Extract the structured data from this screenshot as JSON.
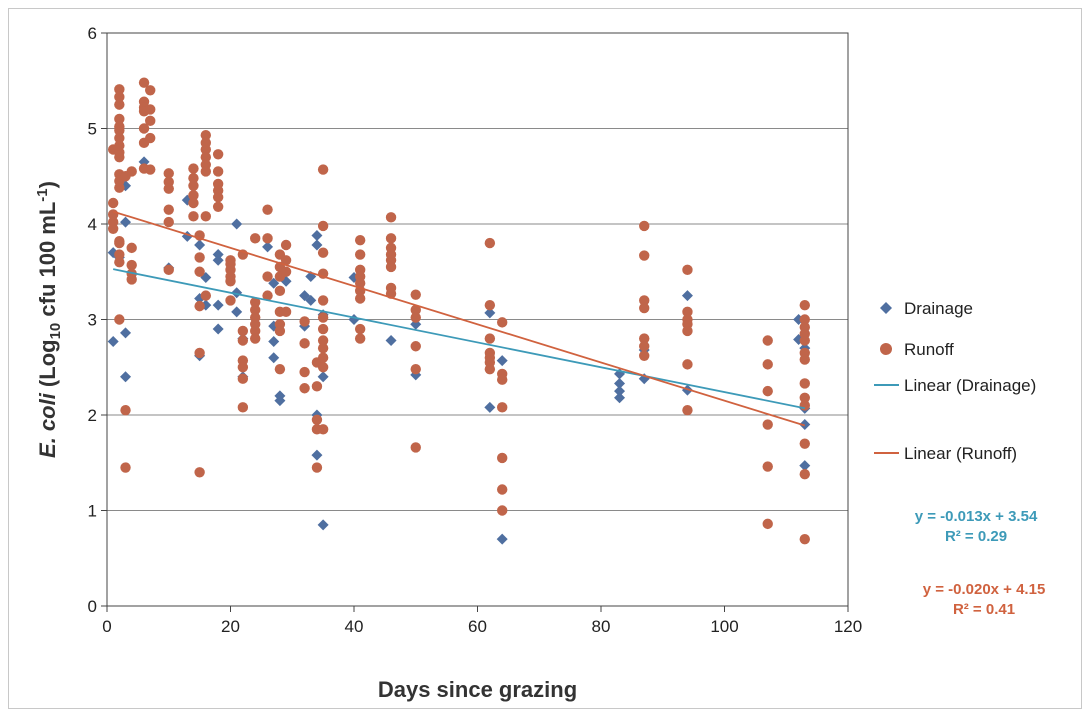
{
  "chart_data": {
    "type": "scatter",
    "xlabel": "Days since grazing",
    "ylabel": {
      "italic": "E. coli",
      "pre": " (Log",
      "sub": "10",
      "mid": " cfu 100 mL",
      "sup": "-1",
      "post": ")"
    },
    "xlim": [
      0,
      120
    ],
    "ylim": [
      0,
      6
    ],
    "x_ticks": [
      "0",
      "20",
      "40",
      "60",
      "80",
      "100",
      "120"
    ],
    "y_ticks": [
      "0",
      "1",
      "2",
      "3",
      "4",
      "5",
      "6"
    ],
    "grid": "horizontal",
    "legend_position": "right",
    "colors": {
      "drainage": "#4f6fa0",
      "runoff": "#c0654a",
      "drainage_trend": "#3d9ab8",
      "runoff_trend": "#d0623f"
    },
    "series": [
      {
        "name": "Drainage",
        "marker": "diamond",
        "points": [
          [
            1,
            2.77
          ],
          [
            1,
            3.7
          ],
          [
            2,
            3.65
          ],
          [
            3,
            2.86
          ],
          [
            3,
            2.4
          ],
          [
            3,
            4.02
          ],
          [
            3,
            4.4
          ],
          [
            6,
            4.65
          ],
          [
            10,
            3.54
          ],
          [
            13,
            3.87
          ],
          [
            13,
            4.25
          ],
          [
            15,
            2.62
          ],
          [
            15,
            3.22
          ],
          [
            15,
            3.78
          ],
          [
            16,
            3.15
          ],
          [
            16,
            3.44
          ],
          [
            18,
            2.9
          ],
          [
            18,
            3.15
          ],
          [
            18,
            3.62
          ],
          [
            18,
            3.68
          ],
          [
            21,
            3.28
          ],
          [
            21,
            3.08
          ],
          [
            21,
            4.0
          ],
          [
            22,
            2.4
          ],
          [
            22,
            2.8
          ],
          [
            26,
            3.76
          ],
          [
            27,
            2.6
          ],
          [
            27,
            2.77
          ],
          [
            27,
            2.93
          ],
          [
            27,
            3.38
          ],
          [
            28,
            2.15
          ],
          [
            28,
            2.2
          ],
          [
            29,
            3.4
          ],
          [
            32,
            2.93
          ],
          [
            32,
            3.25
          ],
          [
            33,
            3.2
          ],
          [
            33,
            3.45
          ],
          [
            34,
            3.78
          ],
          [
            34,
            3.88
          ],
          [
            34,
            1.58
          ],
          [
            34,
            2.0
          ],
          [
            35,
            2.4
          ],
          [
            35,
            3.05
          ],
          [
            35,
            0.85
          ],
          [
            40,
            3.44
          ],
          [
            40,
            3.0
          ],
          [
            46,
            2.78
          ],
          [
            50,
            2.42
          ],
          [
            50,
            2.95
          ],
          [
            62,
            3.07
          ],
          [
            62,
            2.08
          ],
          [
            64,
            2.57
          ],
          [
            64,
            0.7
          ],
          [
            83,
            2.18
          ],
          [
            83,
            2.25
          ],
          [
            83,
            2.33
          ],
          [
            83,
            2.43
          ],
          [
            87,
            2.68
          ],
          [
            87,
            2.38
          ],
          [
            94,
            3.25
          ],
          [
            94,
            2.26
          ],
          [
            112,
            3.0
          ],
          [
            112,
            2.79
          ],
          [
            113,
            2.07
          ],
          [
            113,
            1.9
          ],
          [
            113,
            1.47
          ],
          [
            113,
            2.7
          ]
        ]
      },
      {
        "name": "Runoff",
        "marker": "circle",
        "points": [
          [
            1,
            3.95
          ],
          [
            1,
            4.02
          ],
          [
            1,
            4.1
          ],
          [
            1,
            4.22
          ],
          [
            1,
            4.78
          ],
          [
            2,
            3.6
          ],
          [
            2,
            3.68
          ],
          [
            2,
            3.8
          ],
          [
            2,
            3.82
          ],
          [
            2,
            4.38
          ],
          [
            2,
            4.45
          ],
          [
            2,
            4.52
          ],
          [
            2,
            4.7
          ],
          [
            2,
            4.75
          ],
          [
            2,
            4.82
          ],
          [
            2,
            4.9
          ],
          [
            2,
            4.98
          ],
          [
            2,
            5.02
          ],
          [
            2,
            5.1
          ],
          [
            2,
            5.25
          ],
          [
            2,
            5.33
          ],
          [
            2,
            5.41
          ],
          [
            2,
            3.0
          ],
          [
            3,
            2.05
          ],
          [
            3,
            1.45
          ],
          [
            3,
            4.5
          ],
          [
            4,
            4.55
          ],
          [
            4,
            3.75
          ],
          [
            4,
            3.57
          ],
          [
            4,
            3.48
          ],
          [
            4,
            3.42
          ],
          [
            6,
            5.48
          ],
          [
            6,
            5.28
          ],
          [
            6,
            5.22
          ],
          [
            6,
            5.18
          ],
          [
            6,
            5.0
          ],
          [
            6,
            4.85
          ],
          [
            6,
            4.58
          ],
          [
            7,
            5.4
          ],
          [
            7,
            5.2
          ],
          [
            7,
            5.08
          ],
          [
            7,
            4.9
          ],
          [
            7,
            4.57
          ],
          [
            10,
            4.53
          ],
          [
            10,
            4.44
          ],
          [
            10,
            4.37
          ],
          [
            10,
            4.15
          ],
          [
            10,
            4.02
          ],
          [
            10,
            3.52
          ],
          [
            14,
            4.58
          ],
          [
            14,
            4.48
          ],
          [
            14,
            4.4
          ],
          [
            14,
            4.3
          ],
          [
            14,
            4.22
          ],
          [
            14,
            4.08
          ],
          [
            15,
            3.88
          ],
          [
            15,
            3.65
          ],
          [
            15,
            3.5
          ],
          [
            15,
            3.14
          ],
          [
            15,
            2.65
          ],
          [
            15,
            1.4
          ],
          [
            16,
            4.93
          ],
          [
            16,
            4.85
          ],
          [
            16,
            4.78
          ],
          [
            16,
            4.7
          ],
          [
            16,
            4.62
          ],
          [
            16,
            4.55
          ],
          [
            16,
            4.08
          ],
          [
            16,
            3.25
          ],
          [
            18,
            4.73
          ],
          [
            18,
            4.55
          ],
          [
            18,
            4.42
          ],
          [
            18,
            4.35
          ],
          [
            18,
            4.28
          ],
          [
            18,
            4.18
          ],
          [
            20,
            3.62
          ],
          [
            20,
            3.58
          ],
          [
            20,
            3.52
          ],
          [
            20,
            3.45
          ],
          [
            20,
            3.4
          ],
          [
            20,
            3.2
          ],
          [
            22,
            3.68
          ],
          [
            22,
            2.88
          ],
          [
            22,
            2.78
          ],
          [
            22,
            2.57
          ],
          [
            22,
            2.5
          ],
          [
            22,
            2.38
          ],
          [
            22,
            2.08
          ],
          [
            24,
            3.85
          ],
          [
            24,
            3.18
          ],
          [
            24,
            3.1
          ],
          [
            24,
            3.02
          ],
          [
            24,
            2.95
          ],
          [
            24,
            2.88
          ],
          [
            24,
            2.8
          ],
          [
            26,
            4.15
          ],
          [
            26,
            3.85
          ],
          [
            26,
            3.45
          ],
          [
            26,
            3.25
          ],
          [
            28,
            3.68
          ],
          [
            28,
            3.55
          ],
          [
            28,
            3.45
          ],
          [
            28,
            3.3
          ],
          [
            28,
            3.08
          ],
          [
            28,
            2.95
          ],
          [
            28,
            2.88
          ],
          [
            28,
            2.48
          ],
          [
            29,
            3.78
          ],
          [
            29,
            3.62
          ],
          [
            29,
            3.5
          ],
          [
            29,
            3.08
          ],
          [
            32,
            2.98
          ],
          [
            32,
            2.75
          ],
          [
            32,
            2.45
          ],
          [
            32,
            2.28
          ],
          [
            34,
            2.55
          ],
          [
            34,
            2.3
          ],
          [
            34,
            1.95
          ],
          [
            34,
            1.85
          ],
          [
            34,
            1.45
          ],
          [
            35,
            4.57
          ],
          [
            35,
            3.98
          ],
          [
            35,
            3.7
          ],
          [
            35,
            3.48
          ],
          [
            35,
            3.2
          ],
          [
            35,
            3.02
          ],
          [
            35,
            2.9
          ],
          [
            35,
            2.78
          ],
          [
            35,
            2.7
          ],
          [
            35,
            2.6
          ],
          [
            35,
            2.5
          ],
          [
            35,
            1.85
          ],
          [
            41,
            3.83
          ],
          [
            41,
            3.68
          ],
          [
            41,
            3.52
          ],
          [
            41,
            3.45
          ],
          [
            41,
            3.38
          ],
          [
            41,
            3.3
          ],
          [
            41,
            3.22
          ],
          [
            41,
            2.9
          ],
          [
            41,
            2.8
          ],
          [
            46,
            4.07
          ],
          [
            46,
            3.85
          ],
          [
            46,
            3.75
          ],
          [
            46,
            3.68
          ],
          [
            46,
            3.62
          ],
          [
            46,
            3.55
          ],
          [
            46,
            3.33
          ],
          [
            46,
            3.27
          ],
          [
            50,
            3.26
          ],
          [
            50,
            3.1
          ],
          [
            50,
            3.02
          ],
          [
            50,
            2.72
          ],
          [
            50,
            2.48
          ],
          [
            50,
            1.66
          ],
          [
            62,
            3.8
          ],
          [
            62,
            3.15
          ],
          [
            62,
            2.8
          ],
          [
            62,
            2.65
          ],
          [
            62,
            2.6
          ],
          [
            62,
            2.55
          ],
          [
            62,
            2.48
          ],
          [
            64,
            2.97
          ],
          [
            64,
            2.43
          ],
          [
            64,
            2.37
          ],
          [
            64,
            2.08
          ],
          [
            64,
            1.55
          ],
          [
            64,
            1.22
          ],
          [
            64,
            1.0
          ],
          [
            87,
            3.98
          ],
          [
            87,
            3.67
          ],
          [
            87,
            3.2
          ],
          [
            87,
            3.12
          ],
          [
            87,
            2.8
          ],
          [
            87,
            2.72
          ],
          [
            87,
            2.62
          ],
          [
            94,
            3.52
          ],
          [
            94,
            3.08
          ],
          [
            94,
            3.0
          ],
          [
            94,
            2.95
          ],
          [
            94,
            2.88
          ],
          [
            94,
            2.53
          ],
          [
            94,
            2.05
          ],
          [
            107,
            2.78
          ],
          [
            107,
            2.53
          ],
          [
            107,
            2.25
          ],
          [
            107,
            1.9
          ],
          [
            107,
            1.46
          ],
          [
            107,
            0.86
          ],
          [
            113,
            3.15
          ],
          [
            113,
            3.0
          ],
          [
            113,
            2.92
          ],
          [
            113,
            2.85
          ],
          [
            113,
            2.78
          ],
          [
            113,
            2.65
          ],
          [
            113,
            2.58
          ],
          [
            113,
            2.33
          ],
          [
            113,
            2.18
          ],
          [
            113,
            2.1
          ],
          [
            113,
            1.7
          ],
          [
            113,
            1.38
          ],
          [
            113,
            0.7
          ]
        ]
      },
      {
        "name": "Linear (Drainage)",
        "type": "line",
        "slope": -0.013,
        "intercept": 3.54,
        "x_range": [
          1,
          113
        ]
      },
      {
        "name": "Linear (Runoff)",
        "type": "line",
        "slope": -0.02,
        "intercept": 4.15,
        "x_range": [
          1,
          113
        ]
      }
    ],
    "annotations": {
      "drainage_eq": "y = -0.013x + 3.54",
      "drainage_r2": "R² = 0.29",
      "runoff_eq": "y = -0.020x + 4.15",
      "runoff_r2": "R² = 0.41"
    }
  }
}
